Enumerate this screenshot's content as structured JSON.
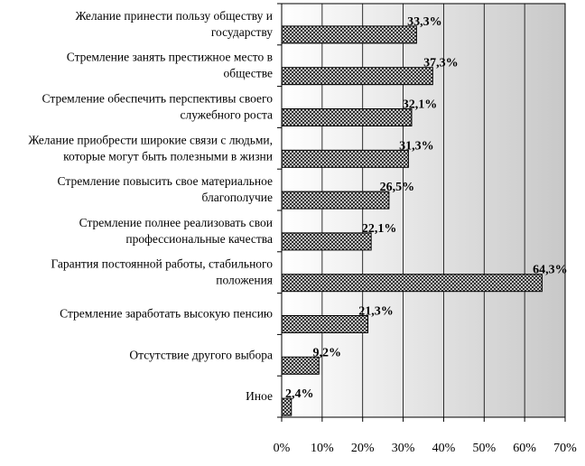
{
  "chart_data": {
    "type": "bar",
    "orientation": "horizontal",
    "categories": [
      [
        "Желание принести пользу обществу и",
        "государству"
      ],
      [
        "Стремление занять престижное место в",
        "обществе"
      ],
      [
        "Стремление обеспечить перспективы своего",
        "служебного роста"
      ],
      [
        "Желание приобрести широкие связи с людьми,",
        "которые могут быть полезными в жизни"
      ],
      [
        "Стремление повысить свое материальное",
        "благополучие"
      ],
      [
        "Стремление полнее реализовать свои",
        "профессиональные качества"
      ],
      [
        "Гарантия постоянной работы, стабильного",
        "положения"
      ],
      [
        "Стремление заработать высокую пенсию"
      ],
      [
        "Отсутствие другого выбора"
      ],
      [
        "Иное"
      ]
    ],
    "values": [
      33.3,
      37.3,
      32.1,
      31.3,
      26.5,
      22.1,
      64.3,
      21.3,
      9.2,
      2.4
    ],
    "value_labels": [
      "33,3%",
      "37,3%",
      "32,1%",
      "31,3%",
      "26,5%",
      "22,1%",
      "64,3%",
      "21,3%",
      "9,2%",
      "2,4%"
    ],
    "xlim": [
      0,
      70
    ],
    "x_ticks": [
      0,
      10,
      20,
      30,
      40,
      50,
      60,
      70
    ],
    "x_tick_labels": [
      "0%",
      "10%",
      "20%",
      "30%",
      "40%",
      "50%",
      "60%",
      "70%"
    ],
    "grid": true,
    "background": "gradient-white-to-gray",
    "bar_fill": "crosshatch",
    "colors": {
      "plot_bg_start": "#ffffff",
      "plot_bg_end": "#c8c8c8",
      "bar_hatch": "#222222",
      "bar_bg": "#ffffff",
      "grid": "#000000"
    }
  }
}
